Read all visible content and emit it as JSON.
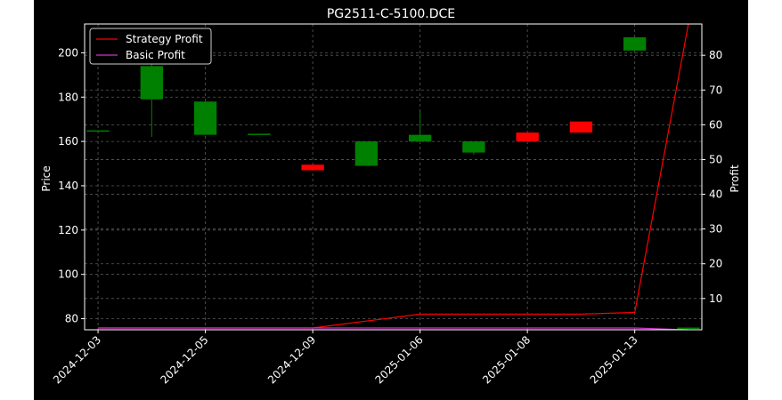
{
  "colors": {
    "background": "#000000",
    "axes": "#ffffff",
    "grid": "#808080",
    "up": "#008000",
    "down": "#ff0000",
    "strategy": "#ff0000",
    "basic": "#cc33cc"
  },
  "chart_data": {
    "type": "candlestick",
    "title": "PG2511-C-5100.DCE",
    "ylabel": "Price",
    "y2label": "Profit",
    "ylim": [
      75,
      213
    ],
    "y2lim": [
      1,
      89
    ],
    "yticks": [
      80,
      100,
      120,
      140,
      160,
      180,
      200
    ],
    "y2ticks": [
      10,
      20,
      30,
      40,
      50,
      60,
      70,
      80
    ],
    "xticks": [
      {
        "index": 0,
        "label": "2024-12-03"
      },
      {
        "index": 2,
        "label": "2024-12-05"
      },
      {
        "index": 4,
        "label": "2024-12-09"
      },
      {
        "index": 6,
        "label": "2025-01-06"
      },
      {
        "index": 8,
        "label": "2025-01-08"
      },
      {
        "index": 10,
        "label": "2025-01-13"
      }
    ],
    "legend_position": "top-left",
    "grid": true,
    "candles": [
      {
        "open": 165,
        "high": 165,
        "low": 165,
        "close": 165
      },
      {
        "open": 179,
        "high": 196,
        "low": 162,
        "close": 194
      },
      {
        "open": 163,
        "high": 178,
        "low": 163,
        "close": 178
      },
      {
        "open": 163.5,
        "high": 163.5,
        "low": 163.5,
        "close": 163.5
      },
      {
        "open": 149.5,
        "high": 149.5,
        "low": 147,
        "close": 147
      },
      {
        "open": 149,
        "high": 160,
        "low": 149,
        "close": 160
      },
      {
        "open": 160,
        "high": 174,
        "low": 160,
        "close": 163
      },
      {
        "open": 155,
        "high": 160,
        "low": 154,
        "close": 160
      },
      {
        "open": 164,
        "high": 164,
        "low": 160,
        "close": 160
      },
      {
        "open": 169,
        "high": 169,
        "low": 164,
        "close": 164
      },
      {
        "open": 201,
        "high": 207,
        "low": 201,
        "close": 207
      },
      {
        "open": 76,
        "high": 76,
        "low": 76,
        "close": 76
      }
    ],
    "series": [
      {
        "name": "Strategy Profit",
        "axis": "right",
        "values": [
          1.5,
          1.5,
          1.5,
          1.5,
          1.5,
          3.5,
          5.5,
          5.5,
          5.5,
          5.5,
          6,
          89
        ]
      },
      {
        "name": "Basic Profit",
        "axis": "right",
        "values": [
          1.5,
          1.5,
          1.5,
          1.5,
          1.5,
          1.5,
          1.5,
          1.5,
          1.5,
          1.5,
          1.5,
          1
        ]
      }
    ]
  }
}
